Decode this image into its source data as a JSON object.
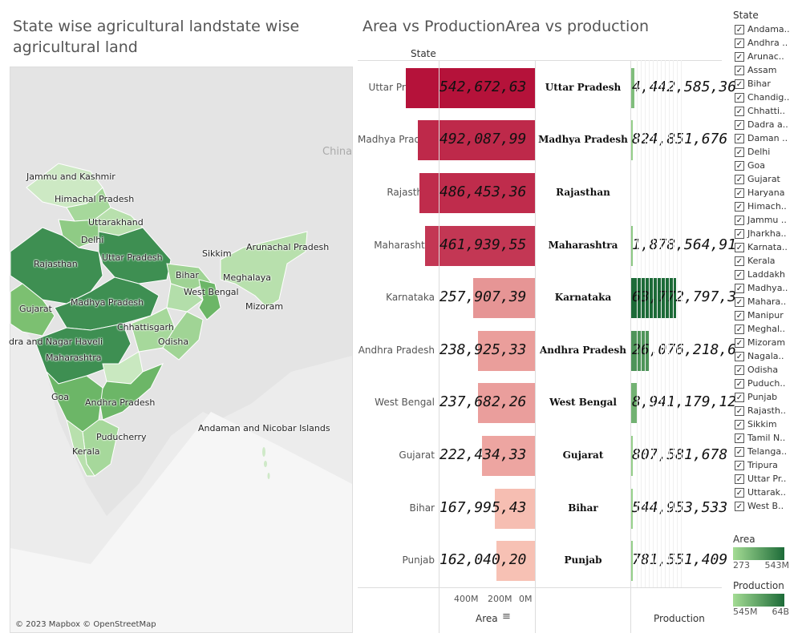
{
  "map": {
    "title": "State wise agricultural landstate wise agricultural land",
    "credit": "© 2023 Mapbox © OpenStreetMap",
    "country_label": "China",
    "state_labels": [
      {
        "name": "Jammu and Kashmir"
      },
      {
        "name": "Himachal Pradesh"
      },
      {
        "name": "Uttarakhand"
      },
      {
        "name": "Delhi"
      },
      {
        "name": "Rajasthan"
      },
      {
        "name": "Uttar Pradesh"
      },
      {
        "name": "Sikkim"
      },
      {
        "name": "Arunachal Pradesh"
      },
      {
        "name": "Bihar"
      },
      {
        "name": "Meghalaya"
      },
      {
        "name": "West Bengal"
      },
      {
        "name": "Mizoram"
      },
      {
        "name": "Gujarat"
      },
      {
        "name": "Madhya Pradesh"
      },
      {
        "name": "Chhattisgarh"
      },
      {
        "name": "dra and Nagar Haveli"
      },
      {
        "name": "Odisha"
      },
      {
        "name": "Maharashtra"
      },
      {
        "name": "Goa"
      },
      {
        "name": "Andhra Pradesh"
      },
      {
        "name": "Puducherry"
      },
      {
        "name": "Kerala"
      },
      {
        "name": "Andaman and Nicobar Islands"
      }
    ]
  },
  "chart_data": {
    "type": "bar",
    "title": "Area vs ProductionArea vs production",
    "row_header": "State",
    "categories": [
      "Uttar Pradesh",
      "Madhya Pradesh",
      "Rajasthan",
      "Maharashtra",
      "Karnataka",
      "Andhra Pradesh",
      "West Bengal",
      "Gujarat",
      "Bihar",
      "Punjab"
    ],
    "series": [
      {
        "name": "Area",
        "values": [
          542672630,
          492087990,
          486453360,
          461939550,
          257907390,
          238925330,
          237682260,
          222434330,
          167995430,
          162040200
        ],
        "labels": [
          "542,672,63",
          "492,087,99",
          "486,453,36",
          "461,939,55",
          "257,907,39",
          "238,925,33",
          "237,682,26",
          "222,434,33",
          "167,995,43",
          "162,040,20"
        ],
        "axis_ticks": [
          "400M",
          "200M",
          "0M"
        ],
        "sort_icon": "sort-descending-icon"
      },
      {
        "name": "Production",
        "values": [
          4442585360,
          824851676,
          0,
          1878564919,
          63772797300,
          26076218600,
          8941179120,
          807581678,
          544953533,
          781551409
        ],
        "labels": [
          "4,442,585,36",
          "824,851,676",
          "",
          "1,878,564,91",
          "63,772,797,3",
          "26,076,218,6",
          "8,941,179,12",
          "807,581,678",
          "544,953,533",
          "781,551,409"
        ]
      }
    ],
    "xlabel_area": "Area",
    "xlabel_production": "Production",
    "colors": {
      "area_high": "#b5123a",
      "area_low": "#f7c1b4",
      "production_high": "#1d6b38",
      "production_low": "#a4dc94"
    }
  },
  "filter": {
    "title": "State",
    "items": [
      "Andama..",
      "Andhra ..",
      "Arunac..",
      "Assam",
      "Bihar",
      "Chandig..",
      "Chhatti..",
      "Dadra a..",
      "Daman ..",
      "Delhi",
      "Goa",
      "Gujarat",
      "Haryana",
      "Himach..",
      "Jammu ..",
      "Jharkha..",
      "Karnata..",
      "Kerala",
      "Laddakh",
      "Madhya..",
      "Mahara..",
      "Manipur",
      "Meghal..",
      "Mizoram",
      "Nagala..",
      "Odisha",
      "Puduch..",
      "Punjab",
      "Rajasth..",
      "Sikkim",
      "Tamil N..",
      "Telanga..",
      "Tripura",
      "Uttar Pr..",
      "Uttarak..",
      "West B.."
    ],
    "check_glyph": "✓"
  },
  "legends": {
    "area": {
      "title": "Area",
      "min": "273",
      "max": "543M"
    },
    "production": {
      "title": "Production",
      "min": "545M",
      "max": "64B"
    }
  }
}
